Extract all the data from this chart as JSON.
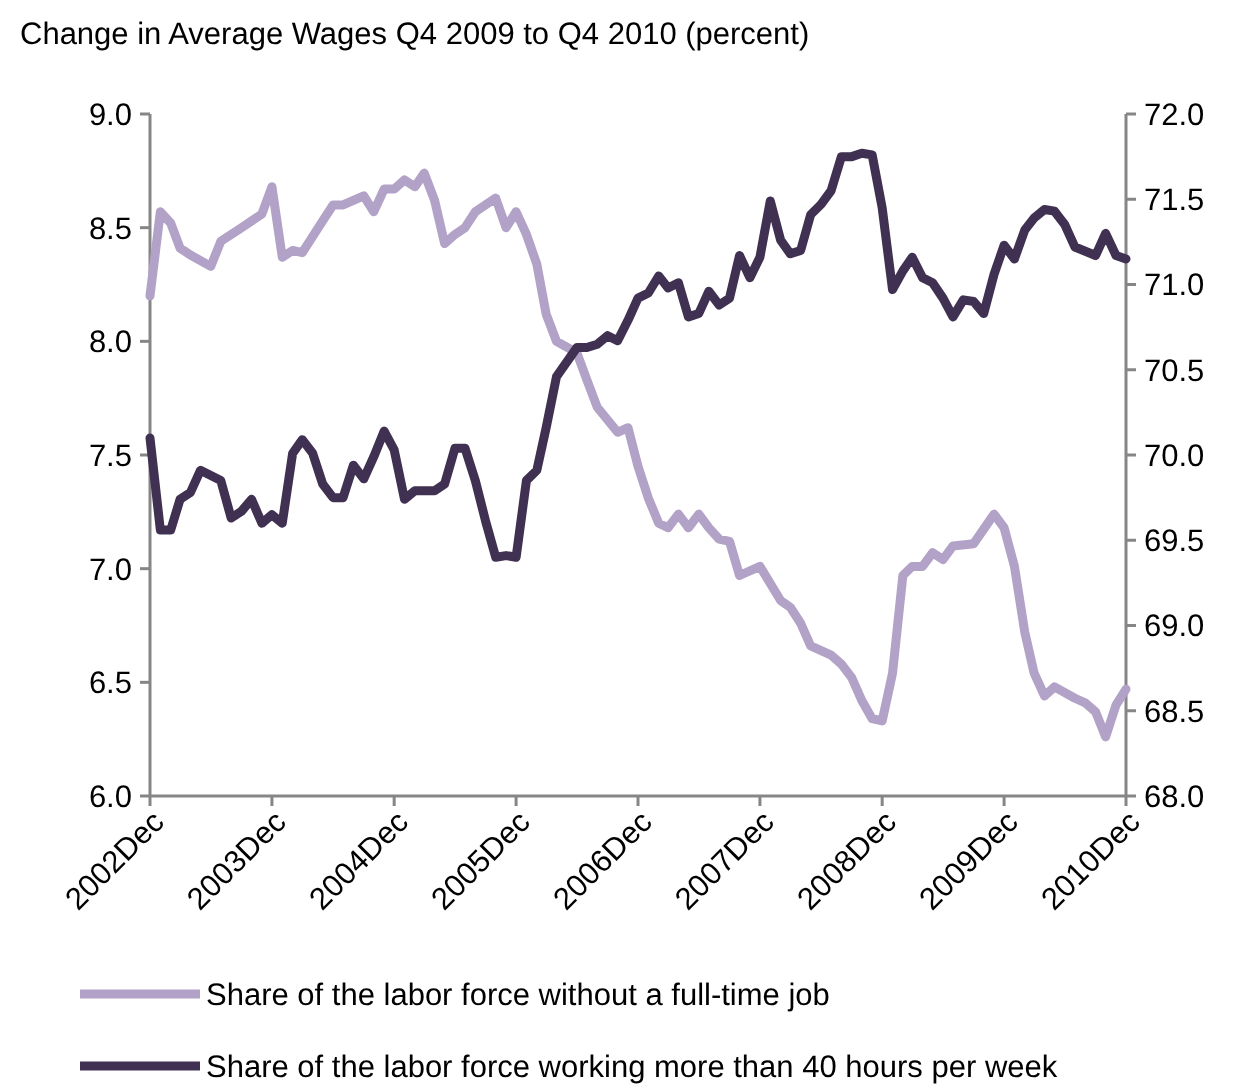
{
  "chart_data": {
    "type": "line",
    "title": "Change in Average Wages Q4 2009 to Q4 2010 (percent)",
    "xlim": [
      "2002-12",
      "2010-12"
    ],
    "xticks": [
      {
        "value": "2002-12",
        "label": "2002Dec"
      },
      {
        "value": "2003-12",
        "label": "2003Dec"
      },
      {
        "value": "2004-12",
        "label": "2004Dec"
      },
      {
        "value": "2005-12",
        "label": "2005Dec"
      },
      {
        "value": "2006-12",
        "label": "2006Dec"
      },
      {
        "value": "2007-12",
        "label": "2007Dec"
      },
      {
        "value": "2008-12",
        "label": "2008Dec"
      },
      {
        "value": "2009-12",
        "label": "2009Dec"
      },
      {
        "value": "2010-12",
        "label": "2010Dec"
      }
    ],
    "ylim": [
      6,
      9
    ],
    "yticks": [
      {
        "value": 6,
        "label": "6.0"
      },
      {
        "value": 6.5,
        "label": "6.5"
      },
      {
        "value": 7,
        "label": "7.0"
      },
      {
        "value": 7.5,
        "label": "7.5"
      },
      {
        "value": 8,
        "label": "8.0"
      },
      {
        "value": 8.5,
        "label": "8.5"
      },
      {
        "value": 9,
        "label": "9.0"
      }
    ],
    "y2lim": [
      68,
      72
    ],
    "y2ticks": [
      {
        "value": 68,
        "label": "68.0"
      },
      {
        "value": 68.5,
        "label": "68.5"
      },
      {
        "value": 69,
        "label": "69.0"
      },
      {
        "value": 69.5,
        "label": "69.5"
      },
      {
        "value": 70,
        "label": "70.0"
      },
      {
        "value": 70.5,
        "label": "70.5"
      },
      {
        "value": 71,
        "label": "71.0"
      },
      {
        "value": 71.5,
        "label": "71.5"
      },
      {
        "value": 72,
        "label": "72.0"
      }
    ],
    "grid": false,
    "legend": "bottom",
    "marker": "none",
    "line_style": "solid",
    "series": [
      {
        "name": "Share of the labor force without a full-time job",
        "color": "#b3a2c7",
        "x": [
          "2002-12",
          "2003-01",
          "2003-02",
          "2003-03",
          "2003-04",
          "2003-06",
          "2003-07",
          "2003-09",
          "2003-11",
          "2003-12",
          "2004-01",
          "2004-02",
          "2004-03",
          "2004-05",
          "2004-06",
          "2004-07",
          "2004-08",
          "2004-09",
          "2004-10",
          "2004-11",
          "2004-12",
          "2005-01",
          "2005-02",
          "2005-03",
          "2005-04",
          "2005-05",
          "2005-06",
          "2005-07",
          "2005-08",
          "2005-10",
          "2005-11",
          "2005-12",
          "2006-01",
          "2006-02",
          "2006-03",
          "2006-04",
          "2006-06",
          "2006-07",
          "2006-08",
          "2006-10",
          "2006-11",
          "2006-12",
          "2007-01",
          "2007-02",
          "2007-03",
          "2007-04",
          "2007-05",
          "2007-06",
          "2007-07",
          "2007-08",
          "2007-09",
          "2007-10",
          "2007-12",
          "2008-02",
          "2008-03",
          "2008-04",
          "2008-05",
          "2008-07",
          "2008-08",
          "2008-09",
          "2008-10",
          "2008-11",
          "2008-12",
          "2009-01",
          "2009-02",
          "2009-03",
          "2009-04",
          "2009-05",
          "2009-06",
          "2009-07",
          "2009-09",
          "2009-11",
          "2009-12",
          "2010-01",
          "2010-02",
          "2010-03",
          "2010-04",
          "2010-05",
          "2010-07",
          "2010-08",
          "2010-09",
          "2010-10",
          "2010-11",
          "2010-12"
        ],
        "values": [
          8.2,
          8.57,
          8.52,
          8.41,
          8.38,
          8.33,
          8.44,
          8.5,
          8.56,
          8.68,
          8.37,
          8.4,
          8.39,
          8.53,
          8.6,
          8.6,
          8.62,
          8.64,
          8.57,
          8.67,
          8.67,
          8.71,
          8.68,
          8.74,
          8.62,
          8.43,
          8.47,
          8.5,
          8.57,
          8.63,
          8.5,
          8.57,
          8.47,
          8.34,
          8.12,
          8.0,
          7.95,
          7.83,
          7.71,
          7.6,
          7.62,
          7.45,
          7.31,
          7.2,
          7.18,
          7.24,
          7.18,
          7.24,
          7.18,
          7.13,
          7.12,
          6.97,
          7.01,
          6.86,
          6.83,
          6.76,
          6.66,
          6.62,
          6.58,
          6.52,
          6.42,
          6.34,
          6.33,
          6.54,
          6.97,
          7.01,
          7.01,
          7.07,
          7.04,
          7.1,
          7.11,
          7.24,
          7.18,
          7.01,
          6.72,
          6.54,
          6.44,
          6.48,
          6.43,
          6.41,
          6.37,
          6.26,
          6.4,
          6.47
        ]
      },
      {
        "name": "Share of the labor force working more than 40 hours per week",
        "color": "#403152",
        "axis": "y2",
        "x": [
          "2002-12",
          "2003-01",
          "2003-02",
          "2003-03",
          "2003-04",
          "2003-05",
          "2003-07",
          "2003-08",
          "2003-09",
          "2003-10",
          "2003-11",
          "2003-12",
          "2004-01",
          "2004-02",
          "2004-03",
          "2004-04",
          "2004-05",
          "2004-06",
          "2004-07",
          "2004-08",
          "2004-09",
          "2004-10",
          "2004-11",
          "2004-12",
          "2005-01",
          "2005-02",
          "2005-04",
          "2005-05",
          "2005-06",
          "2005-07",
          "2005-08",
          "2005-09",
          "2005-10",
          "2005-11",
          "2005-12",
          "2006-01",
          "2006-02",
          "2006-03",
          "2006-04",
          "2006-06",
          "2006-07",
          "2006-08",
          "2006-09",
          "2006-10",
          "2006-11",
          "2006-12",
          "2007-01",
          "2007-02",
          "2007-03",
          "2007-04",
          "2007-05",
          "2007-06",
          "2007-07",
          "2007-08",
          "2007-09",
          "2007-10",
          "2007-11",
          "2007-12",
          "2008-01",
          "2008-02",
          "2008-03",
          "2008-04",
          "2008-05",
          "2008-06",
          "2008-07",
          "2008-08",
          "2008-09",
          "2008-10",
          "2008-11",
          "2008-12",
          "2009-01",
          "2009-02",
          "2009-03",
          "2009-04",
          "2009-05",
          "2009-06",
          "2009-07",
          "2009-08",
          "2009-09",
          "2009-10",
          "2009-11",
          "2009-12",
          "2010-01",
          "2010-02",
          "2010-03",
          "2010-04",
          "2010-05",
          "2010-06",
          "2010-07",
          "2010-09",
          "2010-10",
          "2010-11",
          "2010-12"
        ],
        "values": [
          70.1,
          69.56,
          69.56,
          69.74,
          69.78,
          69.91,
          69.85,
          69.63,
          69.67,
          69.74,
          69.6,
          69.65,
          69.6,
          70.01,
          70.09,
          70.01,
          69.83,
          69.75,
          69.75,
          69.94,
          69.86,
          69.99,
          70.14,
          70.03,
          69.74,
          69.79,
          69.79,
          69.83,
          70.04,
          70.04,
          69.85,
          69.61,
          69.4,
          69.41,
          69.4,
          69.85,
          69.91,
          70.16,
          70.46,
          70.63,
          70.63,
          70.65,
          70.7,
          70.67,
          70.79,
          70.92,
          70.95,
          71.05,
          70.98,
          71.01,
          70.81,
          70.83,
          70.96,
          70.88,
          70.92,
          71.17,
          71.04,
          71.16,
          71.49,
          71.26,
          71.18,
          71.2,
          71.41,
          71.47,
          71.55,
          71.75,
          71.75,
          71.77,
          71.76,
          71.45,
          70.97,
          71.08,
          71.16,
          71.04,
          71.01,
          70.92,
          70.81,
          70.91,
          70.9,
          70.83,
          71.06,
          71.23,
          71.15,
          71.32,
          71.39,
          71.44,
          71.43,
          71.35,
          71.22,
          71.17,
          71.3,
          71.17,
          71.15
        ]
      }
    ]
  }
}
